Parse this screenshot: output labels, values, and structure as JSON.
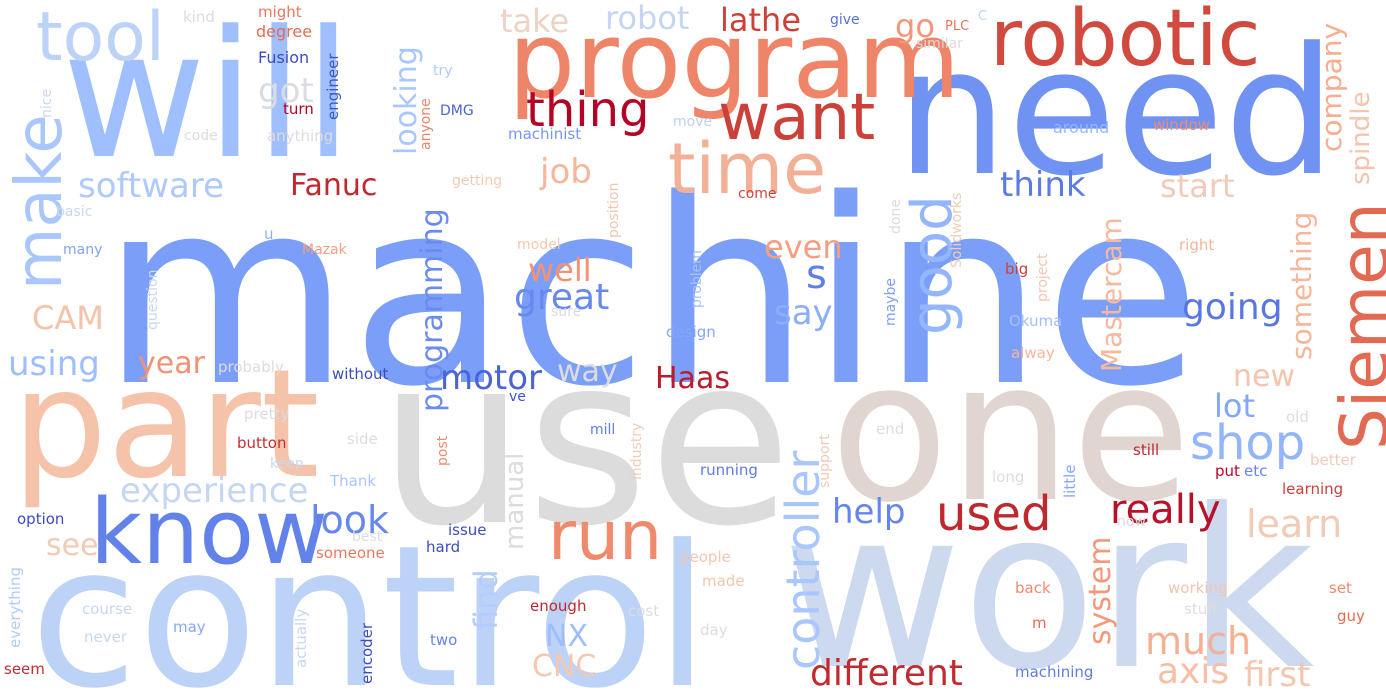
{
  "words": [
    {
      "text": "machine",
      "color": "#7b9ff9"
    },
    {
      "text": "use",
      "color": "#dcdcdc"
    },
    {
      "text": "work",
      "color": "#ccd9ee"
    },
    {
      "text": "control",
      "color": "#bcd2f7"
    },
    {
      "text": "one",
      "color": "#e0d5d0"
    },
    {
      "text": "need",
      "color": "#6f92f3"
    },
    {
      "text": "will",
      "color": "#9fbfff"
    },
    {
      "text": "part",
      "color": "#f5c3a9"
    },
    {
      "text": "program",
      "color": "#ee8468"
    },
    {
      "text": "robotic",
      "color": "#d1493f"
    },
    {
      "text": "time",
      "color": "#f2b196"
    },
    {
      "text": "know",
      "color": "#6282ea"
    },
    {
      "text": "tool",
      "color": "#bcd2f7"
    },
    {
      "text": "Siemen",
      "color": "#e26952"
    },
    {
      "text": "want",
      "color": "#cc403a"
    },
    {
      "text": "run",
      "color": "#f08a6c"
    },
    {
      "text": "make",
      "color": "#aac7fd"
    },
    {
      "text": "good",
      "color": "#94b6ff"
    },
    {
      "text": "thing",
      "color": "#b40426"
    },
    {
      "text": "controller",
      "color": "#a9c6fd"
    },
    {
      "text": "used",
      "color": "#c0282f"
    },
    {
      "text": "shop",
      "color": "#93b5fe"
    },
    {
      "text": "software",
      "color": "#aec9fc"
    },
    {
      "text": "experience",
      "color": "#c5d6f2"
    },
    {
      "text": "look",
      "color": "#6687ed"
    },
    {
      "text": "different",
      "color": "#c12b30"
    },
    {
      "text": "Mastercam",
      "color": "#f7b89c"
    },
    {
      "text": "programming",
      "color": "#6a8bef"
    },
    {
      "text": "system",
      "color": "#f4987a"
    },
    {
      "text": "company",
      "color": "#f7ad90"
    },
    {
      "text": "spindle",
      "color": "#f4c5ad"
    },
    {
      "text": "something",
      "color": "#f7b599"
    },
    {
      "text": "really",
      "color": "#b8122a"
    },
    {
      "text": "learn",
      "color": "#f2cbb7"
    },
    {
      "text": "much",
      "color": "#f7af91"
    },
    {
      "text": "axis",
      "color": "#f6bfa6"
    },
    {
      "text": "first",
      "color": "#f4c6af"
    },
    {
      "text": "great",
      "color": "#6788ee"
    },
    {
      "text": "going",
      "color": "#5977e3"
    },
    {
      "text": "looking",
      "color": "#aac7fd"
    },
    {
      "text": "manual",
      "color": "#dadce0"
    },
    {
      "text": "find",
      "color": "#b5cdfa"
    },
    {
      "text": "CNC",
      "color": "#f3c8b2"
    },
    {
      "text": "NX",
      "color": "#9dbdff"
    },
    {
      "text": "motor",
      "color": "#4b64d5"
    },
    {
      "text": "Haas",
      "color": "#bb1b2c"
    },
    {
      "text": "help",
      "color": "#6485ec"
    },
    {
      "text": "say",
      "color": "#8badfd"
    },
    {
      "text": "well",
      "color": "#f29274"
    },
    {
      "text": "even",
      "color": "#f59f80"
    },
    {
      "text": "think",
      "color": "#5b7ae5"
    },
    {
      "text": "start",
      "color": "#f2cbb7"
    },
    {
      "text": "new",
      "color": "#f5c4ac"
    },
    {
      "text": "lot",
      "color": "#84a7fc"
    },
    {
      "text": "job",
      "color": "#f7b599"
    },
    {
      "text": "way",
      "color": "#dddcdc"
    },
    {
      "text": "s",
      "color": "#5f7fe8"
    },
    {
      "text": "Fanuc",
      "color": "#c0282f"
    },
    {
      "text": "got",
      "color": "#d9dce1"
    },
    {
      "text": "take",
      "color": "#ecd3c5"
    },
    {
      "text": "robot",
      "color": "#c6d6f1"
    },
    {
      "text": "lathe",
      "color": "#cc403a"
    },
    {
      "text": "go",
      "color": "#f39778"
    },
    {
      "text": "using",
      "color": "#9ebeff"
    },
    {
      "text": "year",
      "color": "#f29274"
    },
    {
      "text": "CAM",
      "color": "#f5c2aa"
    },
    {
      "text": "see",
      "color": "#f2cab5"
    },
    {
      "text": "Fusion",
      "color": "#3b4cc0"
    },
    {
      "text": "might",
      "color": "#e9785d"
    },
    {
      "text": "degree",
      "color": "#e36c55"
    },
    {
      "text": "kind",
      "color": "#dadce0"
    },
    {
      "text": "engineer",
      "color": "#4055c8"
    },
    {
      "text": "PLC",
      "color": "#e8765c"
    },
    {
      "text": "C",
      "color": "#c0d4f5"
    },
    {
      "text": "give",
      "color": "#5572df"
    },
    {
      "text": "similar",
      "color": "#dbdcde"
    },
    {
      "text": "try",
      "color": "#b1cbfc"
    },
    {
      "text": "anyone",
      "color": "#ee8468"
    },
    {
      "text": "DMG",
      "color": "#4b64d5"
    },
    {
      "text": "machinist",
      "color": "#7597f6"
    },
    {
      "text": "move",
      "color": "#bad0f8"
    },
    {
      "text": "around",
      "color": "#96b7ff"
    },
    {
      "text": "window",
      "color": "#f08b6e"
    },
    {
      "text": "turn",
      "color": "#b40426"
    },
    {
      "text": "code",
      "color": "#dcdddd"
    },
    {
      "text": "anything",
      "color": "#dedcdb"
    },
    {
      "text": "nice",
      "color": "#cdd9ec"
    },
    {
      "text": "getting",
      "color": "#f2cab5"
    },
    {
      "text": "position",
      "color": "#f4c5ad"
    },
    {
      "text": "come",
      "color": "#cf453c"
    },
    {
      "text": "Solidworks",
      "color": "#f1ccb8"
    },
    {
      "text": "basic",
      "color": "#c7d7f0"
    },
    {
      "text": "u",
      "color": "#8db0fe"
    },
    {
      "text": "Mazak",
      "color": "#f59f80"
    },
    {
      "text": "model",
      "color": "#f3c7b1"
    },
    {
      "text": "done",
      "color": "#dfdbd9"
    },
    {
      "text": "project",
      "color": "#f4c6af"
    },
    {
      "text": "right",
      "color": "#f7b497"
    },
    {
      "text": "many",
      "color": "#80a3fa"
    },
    {
      "text": "big",
      "color": "#cc403a"
    },
    {
      "text": "question",
      "color": "#cad8ef"
    },
    {
      "text": "sure",
      "color": "#dddcdc"
    },
    {
      "text": "problem",
      "color": "#a5c3fe"
    },
    {
      "text": "maybe",
      "color": "#7da0f9"
    },
    {
      "text": "Okuma",
      "color": "#a1c0ff"
    },
    {
      "text": "design",
      "color": "#84a7fc"
    },
    {
      "text": "probably",
      "color": "#dddcdc"
    },
    {
      "text": "without",
      "color": "#3b4cc0"
    },
    {
      "text": "alway",
      "color": "#f7b599"
    },
    {
      "text": "ve",
      "color": "#3f53c6"
    },
    {
      "text": "pretty",
      "color": "#dedcdb"
    },
    {
      "text": "mill",
      "color": "#5d7ce6"
    },
    {
      "text": "industry",
      "color": "#f2cbb7"
    },
    {
      "text": "support",
      "color": "#f2cab5"
    },
    {
      "text": "end",
      "color": "#dcdddd"
    },
    {
      "text": "old",
      "color": "#dedcdb"
    },
    {
      "text": "button",
      "color": "#c32e31"
    },
    {
      "text": "side",
      "color": "#dcdddd"
    },
    {
      "text": "post",
      "color": "#f08b6e"
    },
    {
      "text": "little",
      "color": "#84a7fc"
    },
    {
      "text": "still",
      "color": "#c0282f"
    },
    {
      "text": "better",
      "color": "#f2cbb7"
    },
    {
      "text": "keep",
      "color": "#cad8ef"
    },
    {
      "text": "running",
      "color": "#5d7ce6"
    },
    {
      "text": "put",
      "color": "#b40426"
    },
    {
      "text": "etc",
      "color": "#6485ec"
    },
    {
      "text": "Thank",
      "color": "#a9c6fd"
    },
    {
      "text": "long",
      "color": "#dfdbd9"
    },
    {
      "text": "learning",
      "color": "#cc403a"
    },
    {
      "text": "option",
      "color": "#3b4cc0"
    },
    {
      "text": "best",
      "color": "#dcdddd"
    },
    {
      "text": "issue",
      "color": "#3b4cc0"
    },
    {
      "text": "now",
      "color": "#dcdddd"
    },
    {
      "text": "hard",
      "color": "#3b4cc0"
    },
    {
      "text": "someone",
      "color": "#e9785d"
    },
    {
      "text": "people",
      "color": "#f4c5ad"
    },
    {
      "text": "made",
      "color": "#f4c5ad"
    },
    {
      "text": "everything",
      "color": "#b1cbfc"
    },
    {
      "text": "course",
      "color": "#c7d7f0"
    },
    {
      "text": "actually",
      "color": "#c7d7f0"
    },
    {
      "text": "enough",
      "color": "#c0282f"
    },
    {
      "text": "cost",
      "color": "#dcdddd"
    },
    {
      "text": "back",
      "color": "#f08b6e"
    },
    {
      "text": "working",
      "color": "#f4c5ad"
    },
    {
      "text": "set",
      "color": "#f08b6e"
    },
    {
      "text": "stuff",
      "color": "#dcdddd"
    },
    {
      "text": "guy",
      "color": "#e36c55"
    },
    {
      "text": "may",
      "color": "#84a7fc"
    },
    {
      "text": "day",
      "color": "#dcdddd"
    },
    {
      "text": "m",
      "color": "#e36c55"
    },
    {
      "text": "never",
      "color": "#c7d7f0"
    },
    {
      "text": "two",
      "color": "#6485ec"
    },
    {
      "text": "encoder",
      "color": "#3b4cc0"
    },
    {
      "text": "machining",
      "color": "#5d7ce6"
    },
    {
      "text": "seem",
      "color": "#c32e31"
    }
  ]
}
